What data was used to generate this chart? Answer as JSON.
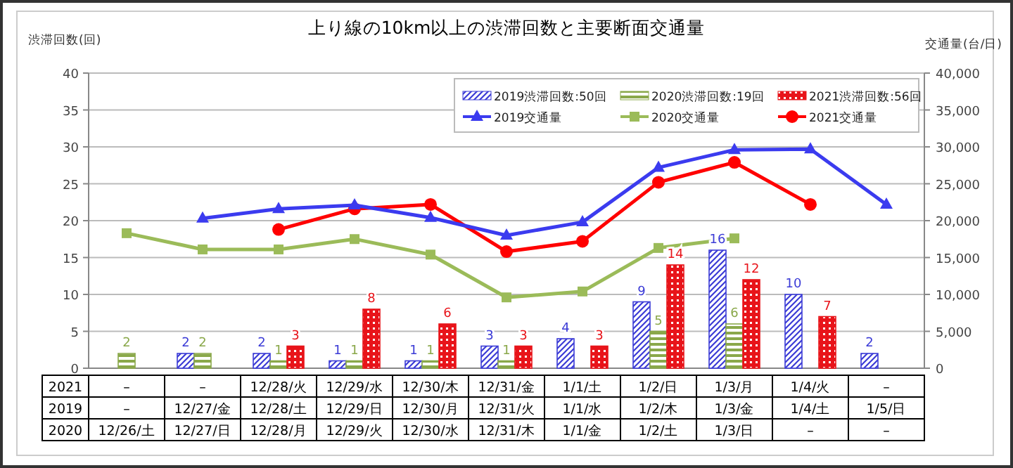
{
  "chart_data": {
    "type": "bar",
    "title": "上り線の10km以上の渋滞回数と主要断面交通量",
    "ylabel": "渋滞回数(回)",
    "y2label": "交通量(台/日)",
    "categories": [
      "–",
      "–",
      "12/28/火",
      "12/29/水",
      "12/30/木",
      "12/31/金",
      "1/1/土",
      "1/2/日",
      "1/3/月",
      "1/4/火",
      "–"
    ],
    "series": [
      {
        "name": "2019渋滞回数:50回",
        "color": "#3b3bd6",
        "values": [
          null,
          2,
          2,
          1,
          1,
          3,
          4,
          9,
          16,
          10,
          2
        ],
        "value_labels": [
          null,
          "2",
          "2",
          "1",
          "1",
          "3",
          "4",
          "9",
          "16",
          "10",
          "2"
        ]
      },
      {
        "name": "2020渋滞回数:19回",
        "color": "#8aa84a",
        "values": [
          2,
          2,
          1,
          1,
          1,
          1,
          null,
          5,
          6,
          null,
          null
        ],
        "value_labels": [
          "2",
          "2",
          "1",
          "1",
          "1",
          "1",
          null,
          "5",
          "6",
          null,
          null
        ]
      },
      {
        "name": "2021渋滞回数:56回",
        "color": "#e8141a",
        "values": [
          null,
          null,
          3,
          8,
          6,
          3,
          3,
          14,
          12,
          7,
          null
        ],
        "value_labels": [
          null,
          null,
          "3",
          "8",
          "6",
          "3",
          "3",
          "14",
          "12",
          "7",
          null
        ]
      },
      {
        "name": "2019交通量",
        "type": "line",
        "axis": "y2",
        "marker": "triangle",
        "color": "#3b3bef",
        "values": [
          null,
          20300,
          21600,
          22100,
          20400,
          18000,
          19800,
          27200,
          29600,
          29700,
          22200
        ]
      },
      {
        "name": "2020交通量",
        "type": "line",
        "axis": "y2",
        "marker": "square",
        "color": "#9bbb59",
        "values": [
          18300,
          16100,
          16100,
          17500,
          15400,
          9600,
          10400,
          16300,
          17600,
          null,
          null
        ]
      },
      {
        "name": "2021交通量",
        "type": "line",
        "axis": "y2",
        "marker": "circle",
        "color": "#ff0000",
        "values": [
          null,
          null,
          18800,
          21600,
          22200,
          15800,
          17200,
          25200,
          27900,
          22200,
          null
        ]
      }
    ],
    "ylim": [
      0,
      40
    ],
    "yticks": [
      0,
      5,
      10,
      15,
      20,
      25,
      30,
      35,
      40
    ],
    "y2lim": [
      0,
      40000
    ],
    "y2ticks": [
      {
        "value": 0,
        "label": "0"
      },
      {
        "value": 5000,
        "label": "5,000"
      },
      {
        "value": 10000,
        "label": "10,000"
      },
      {
        "value": 15000,
        "label": "15,000"
      },
      {
        "value": 20000,
        "label": "20,000"
      },
      {
        "value": 25000,
        "label": "25,000"
      },
      {
        "value": 30000,
        "label": "30,000"
      },
      {
        "value": 35000,
        "label": "35,000"
      },
      {
        "value": 40000,
        "label": "40,000"
      }
    ],
    "grid": "y",
    "legend": "top right",
    "annotations": [
      "2021",
      "2019",
      "–",
      "12/27/金",
      "12/28/土",
      "12/29/日",
      "12/30/月",
      "12/31/火",
      "1/1/水",
      "1/2/木",
      "1/3/金",
      "1/4/土",
      "1/5/日",
      "2020",
      "12/26/土",
      "12/27/日",
      "12/28/月",
      "12/29/火",
      "12/30/水",
      "12/31/木",
      "1/1/金",
      "1/2/土",
      "1/3/日",
      "–",
      "–"
    ]
  }
}
